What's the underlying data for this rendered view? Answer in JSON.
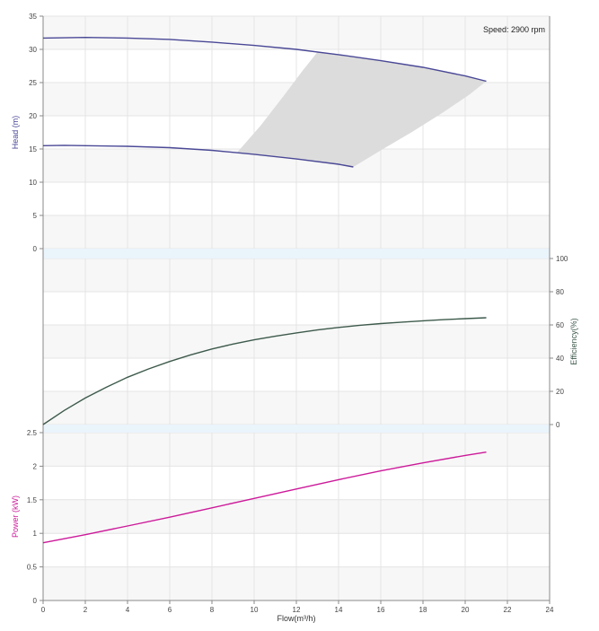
{
  "chart_data": [
    {
      "type": "line",
      "panel": "head",
      "ylabel": "Head (m)",
      "ylim": [
        0,
        35
      ],
      "yticks": [
        0,
        5,
        10,
        15,
        20,
        25,
        30,
        35
      ],
      "annotation": "Speed: 2900 rpm",
      "grid": true,
      "series": [
        {
          "x": [
            0,
            2,
            4,
            6,
            8,
            10,
            12,
            14,
            16,
            18,
            20,
            21
          ],
          "y": [
            31.7,
            31.8,
            31.7,
            31.5,
            31.1,
            30.6,
            30.0,
            29.2,
            28.3,
            27.3,
            26.0,
            25.2
          ]
        },
        {
          "x": [
            0,
            1,
            2,
            4,
            6,
            8,
            10,
            12,
            14,
            14.7
          ],
          "y": [
            15.5,
            15.55,
            15.5,
            15.4,
            15.2,
            14.8,
            14.2,
            13.5,
            12.7,
            12.3
          ]
        }
      ],
      "region": {
        "upper": {
          "x": [
            9.2,
            10.3,
            11.4,
            12.3,
            13.0
          ],
          "y": [
            14.5,
            18.5,
            23.0,
            26.8,
            29.6
          ]
        },
        "lower": {
          "x": [
            14.7,
            16.0,
            17.5,
            19.0,
            20.2,
            21.0
          ],
          "y": [
            12.3,
            14.8,
            17.6,
            20.6,
            23.2,
            25.2
          ]
        }
      }
    },
    {
      "type": "line",
      "panel": "efficiency",
      "ylabel": "Efficiency(%)",
      "ylim": [
        0,
        100
      ],
      "yticks": [
        0,
        20,
        40,
        60,
        80,
        100
      ],
      "grid": true,
      "series": [
        {
          "x": [
            0,
            1,
            2,
            3,
            4,
            5,
            6,
            7,
            8,
            9,
            10,
            11,
            12,
            13,
            14,
            15,
            16,
            17,
            18,
            19,
            20,
            21
          ],
          "y": [
            0,
            8.5,
            16,
            22.5,
            28.5,
            33.5,
            38,
            42,
            45.5,
            48.5,
            51,
            53.2,
            55.2,
            57,
            58.5,
            59.8,
            60.8,
            61.7,
            62.5,
            63.2,
            63.8,
            64.3
          ]
        }
      ]
    },
    {
      "type": "line",
      "panel": "power",
      "ylabel": "Power (kW)",
      "xlabel": "Flow(m³/h)",
      "ylim": [
        0,
        2.5
      ],
      "yticks": [
        "0",
        "0.5",
        "1",
        "1.5",
        "2",
        "2.5"
      ],
      "xlim": [
        0,
        24
      ],
      "xticks": [
        "0",
        "2",
        "4",
        "6",
        "8",
        "10",
        "12",
        "14",
        "16",
        "18",
        "20",
        "22",
        "24"
      ],
      "grid": true,
      "series": [
        {
          "x": [
            0,
            2,
            4,
            6,
            8,
            10,
            12,
            14,
            16,
            18,
            20,
            21
          ],
          "y": [
            0.86,
            0.98,
            1.11,
            1.24,
            1.38,
            1.52,
            1.66,
            1.8,
            1.93,
            2.05,
            2.16,
            2.21
          ]
        }
      ]
    }
  ],
  "colors": {
    "head": "#4a4896",
    "efficiency": "#3d5a4c",
    "power": "#cc1a9a",
    "region": "#dcdcdc",
    "grid": "#e4e4e4",
    "band": "#eaf4fb",
    "band_shade": "#f7f7f7"
  }
}
